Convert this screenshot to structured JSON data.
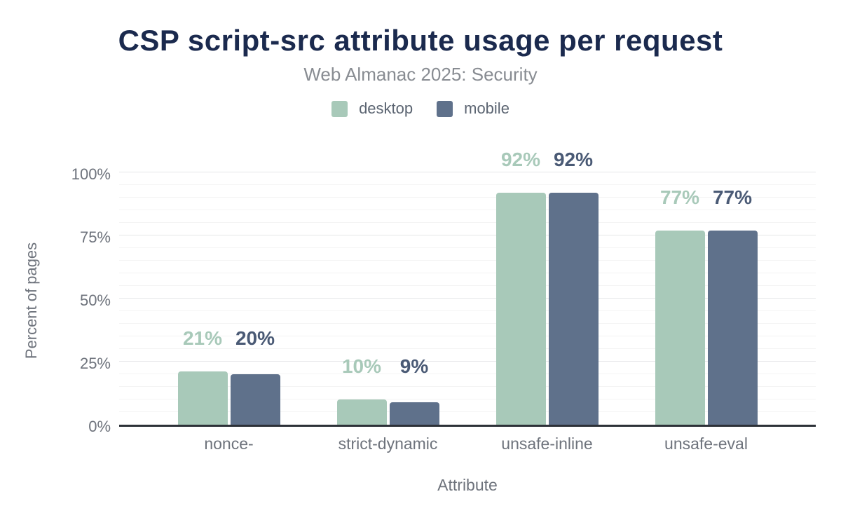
{
  "chart_data": {
    "type": "bar",
    "title": "CSP script-src attribute usage per request",
    "subtitle": "Web Almanac 2025: Security",
    "categories": [
      "nonce-",
      "strict-dynamic",
      "unsafe-inline",
      "unsafe-eval"
    ],
    "series": [
      {
        "name": "desktop",
        "values": [
          21,
          10,
          92,
          77
        ],
        "color": "#a8c9b9",
        "label_color": "#a8c9b9"
      },
      {
        "name": "mobile",
        "values": [
          20,
          9,
          92,
          77
        ],
        "color": "#5f718b",
        "label_color": "#4a5a75"
      }
    ],
    "value_labels": [
      [
        "21%",
        "10%",
        "92%",
        "77%"
      ],
      [
        "20%",
        "9%",
        "92%",
        "77%"
      ]
    ],
    "xlabel": "Attribute",
    "ylabel": "Percent of pages",
    "ylim": [
      0,
      100
    ],
    "yticks": [
      0,
      25,
      50,
      75,
      100
    ],
    "ytick_labels": [
      "0%",
      "25%",
      "50%",
      "75%",
      "100%"
    ],
    "minor_grid_step": 5,
    "grid": true,
    "legend_position": "top"
  },
  "colors": {
    "title": "#1b2a4e",
    "subtitle": "#888c92",
    "legend_text": "#5c6572",
    "axis_text": "#6e737c",
    "axis_line": "#2d3138",
    "grid_major": "#e5e6e8",
    "grid_minor": "#f4f4f4",
    "background": "#ffffff"
  }
}
